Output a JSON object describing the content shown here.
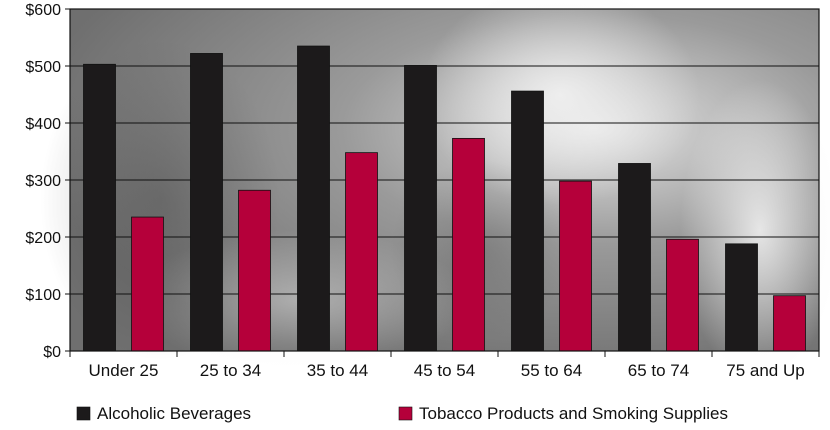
{
  "chart_data": {
    "type": "bar",
    "title": "",
    "xlabel": "",
    "ylabel": "",
    "categories": [
      "Under 25",
      "25 to 34",
      "35 to 44",
      "45 to 54",
      "55 to 64",
      "65 to 74",
      "75 and Up"
    ],
    "series": [
      {
        "name": "Alcoholic Beverages",
        "color": "#1c1a1b",
        "values": [
          503,
          522,
          535,
          501,
          456,
          329,
          188
        ]
      },
      {
        "name": "Tobacco Products and Smoking Supplies",
        "color": "#b5003a",
        "values": [
          235,
          282,
          348,
          373,
          298,
          196,
          97
        ]
      }
    ],
    "y_ticks": [
      "$0",
      "$100",
      "$200",
      "$300",
      "$400",
      "$500",
      "$600"
    ],
    "ylim": [
      0,
      600
    ],
    "grid": true,
    "legend_position": "bottom"
  }
}
